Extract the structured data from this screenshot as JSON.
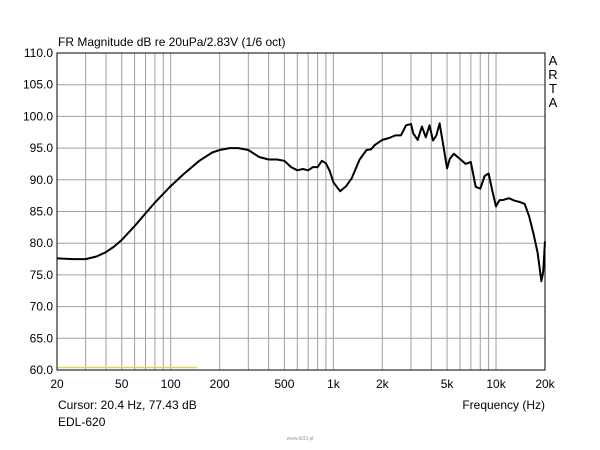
{
  "chart_data": {
    "type": "line",
    "title": "FR Magnitude dB re 20uPa/2.83V (1/6 oct)",
    "xlabel": "Frequency (Hz)",
    "ylabel": "",
    "x_scale": "log",
    "xlim": [
      20,
      20000
    ],
    "ylim": [
      60,
      110
    ],
    "grid": true,
    "yticks": [
      "110.0",
      "105.0",
      "100.0",
      "95.0",
      "90.0",
      "85.0",
      "80.0",
      "75.0",
      "70.0",
      "65.0",
      "60.0"
    ],
    "xticks": [
      {
        "value": 20,
        "label": "20"
      },
      {
        "value": 50,
        "label": "50"
      },
      {
        "value": 100,
        "label": "100"
      },
      {
        "value": 200,
        "label": "200"
      },
      {
        "value": 500,
        "label": "500"
      },
      {
        "value": 1000,
        "label": "1k"
      },
      {
        "value": 2000,
        "label": "2k"
      },
      {
        "value": 5000,
        "label": "5k"
      },
      {
        "value": 10000,
        "label": "10k"
      },
      {
        "value": 20000,
        "label": "20k"
      }
    ],
    "series": [
      {
        "color": "#000000",
        "x": [
          20,
          25,
          30,
          35,
          40,
          45,
          50,
          60,
          70,
          80,
          100,
          120,
          150,
          180,
          200,
          230,
          260,
          300,
          350,
          400,
          450,
          500,
          550,
          600,
          650,
          700,
          750,
          800,
          850,
          900,
          950,
          1000,
          1100,
          1200,
          1300,
          1450,
          1600,
          1700,
          1800,
          2000,
          2200,
          2400,
          2600,
          2800,
          3000,
          3100,
          3300,
          3500,
          3700,
          3900,
          4100,
          4300,
          4500,
          4700,
          5000,
          5200,
          5500,
          6000,
          6500,
          7000,
          7500,
          8000,
          8500,
          9000,
          9500,
          10000,
          10500,
          11000,
          12000,
          13000,
          14000,
          15000,
          16000,
          17000,
          18000,
          19000,
          19500,
          20000
        ],
        "y": [
          77.6,
          77.5,
          77.5,
          77.9,
          78.6,
          79.5,
          80.5,
          82.7,
          84.7,
          86.4,
          89.0,
          90.9,
          93.0,
          94.3,
          94.7,
          95.0,
          95.0,
          94.7,
          93.6,
          93.2,
          93.2,
          93.0,
          92.0,
          91.5,
          91.7,
          91.5,
          92.0,
          92.0,
          93.0,
          92.6,
          91.4,
          89.6,
          88.2,
          89.0,
          90.3,
          93.2,
          94.7,
          94.8,
          95.5,
          96.3,
          96.6,
          97.0,
          97.0,
          98.6,
          98.8,
          97.3,
          96.3,
          98.4,
          96.7,
          98.6,
          96.2,
          97.0,
          98.9,
          96.0,
          91.8,
          93.3,
          94.1,
          93.3,
          92.5,
          92.8,
          88.9,
          88.6,
          90.6,
          91.0,
          88.2,
          85.8,
          86.8,
          86.8,
          87.1,
          86.7,
          86.5,
          86.2,
          84.2,
          81.5,
          78.5,
          74.0,
          75.5,
          80.3
        ]
      },
      {
        "color": "#e0d850",
        "x": [
          20,
          145
        ],
        "y": [
          60.4,
          60.4
        ]
      }
    ],
    "annotations": [
      "A",
      "R",
      "T",
      "A"
    ]
  },
  "footer": {
    "cursor": "Cursor: 20.4 Hz, 77.43 dB",
    "device": "EDL-620",
    "watermark": "www.bl33.pl"
  }
}
